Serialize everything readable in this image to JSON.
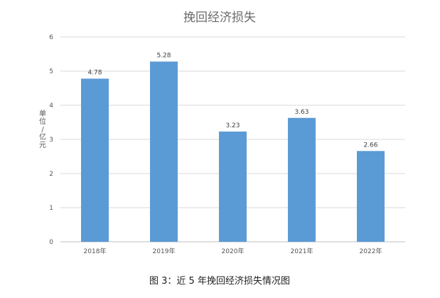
{
  "chart_data": {
    "type": "bar",
    "title": "挽回经济损失",
    "ylabel": "单位/亿元",
    "xlabel": "",
    "categories": [
      "2018年",
      "2019年",
      "2020年",
      "2021年",
      "2022年"
    ],
    "values": [
      4.78,
      5.28,
      3.23,
      3.63,
      2.66
    ],
    "data_labels": [
      "4.78",
      "5.28",
      "3.23",
      "3.63",
      "2.66"
    ],
    "ylim": [
      0,
      6
    ],
    "yticks": [
      "0",
      "1",
      "2",
      "3",
      "4",
      "5",
      "6"
    ],
    "grid": true,
    "legend": "none",
    "bar_color": "#5b9bd5"
  },
  "caption": "图 3：近 5 年挽回经济损失情况图"
}
